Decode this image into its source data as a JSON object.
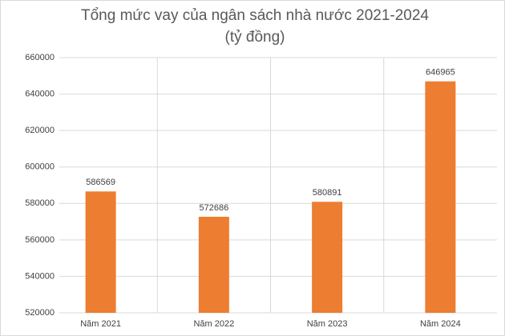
{
  "chart_data": {
    "type": "bar",
    "title": "Tổng mức vay của ngân sách nhà nước 2021-2024",
    "subtitle": "(tỷ đồng)",
    "categories": [
      "Năm 2021",
      "Năm 2022",
      "Năm 2023",
      "Năm 2024"
    ],
    "values": [
      586569,
      572686,
      580891,
      646965
    ],
    "color": "#ed7d31",
    "ylim": [
      520000,
      660000
    ],
    "yticks": [
      520000,
      540000,
      560000,
      580000,
      600000,
      620000,
      640000,
      660000
    ],
    "grid": true
  }
}
